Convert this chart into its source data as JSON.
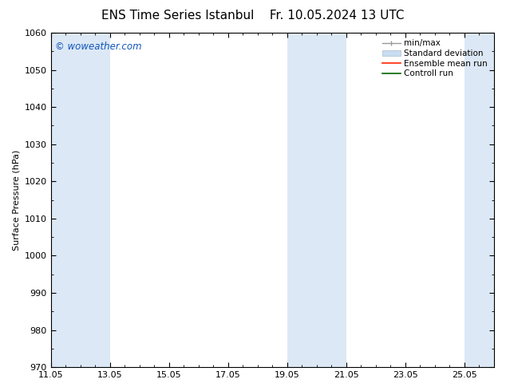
{
  "title": "ENS Time Series Istanbul",
  "title2": "Fr. 10.05.2024 13 UTC",
  "ylabel": "Surface Pressure (hPa)",
  "ylim": [
    970,
    1060
  ],
  "yticks": [
    970,
    980,
    990,
    1000,
    1010,
    1020,
    1030,
    1040,
    1050,
    1060
  ],
  "xlim": [
    0,
    15.0
  ],
  "xtick_labels": [
    "11.05",
    "13.05",
    "15.05",
    "17.05",
    "19.05",
    "21.05",
    "23.05",
    "25.05"
  ],
  "xtick_positions": [
    0,
    2,
    4,
    6,
    8,
    10,
    12,
    14
  ],
  "shaded_bands": [
    {
      "start": 0.0,
      "end": 2.0,
      "color": "#dce8f5"
    },
    {
      "start": 8.0,
      "end": 9.0,
      "color": "#dce8f5"
    },
    {
      "start": 9.0,
      "end": 10.0,
      "color": "#dce8f5"
    },
    {
      "start": 14.0,
      "end": 15.0,
      "color": "#dce8f5"
    }
  ],
  "watermark": "© woweather.com",
  "watermark_color": "#1155bb",
  "legend_items": [
    {
      "label": "min/max",
      "color": "#999999",
      "type": "errorbar"
    },
    {
      "label": "Standard deviation",
      "color": "#c8ddf0",
      "type": "box"
    },
    {
      "label": "Ensemble mean run",
      "color": "#ff2200",
      "type": "line"
    },
    {
      "label": "Controll run",
      "color": "#006600",
      "type": "line"
    }
  ],
  "bg_color": "#ffffff",
  "plot_bg_color": "#ffffff",
  "title_fontsize": 11,
  "axis_label_fontsize": 8,
  "tick_fontsize": 8,
  "legend_fontsize": 7.5
}
